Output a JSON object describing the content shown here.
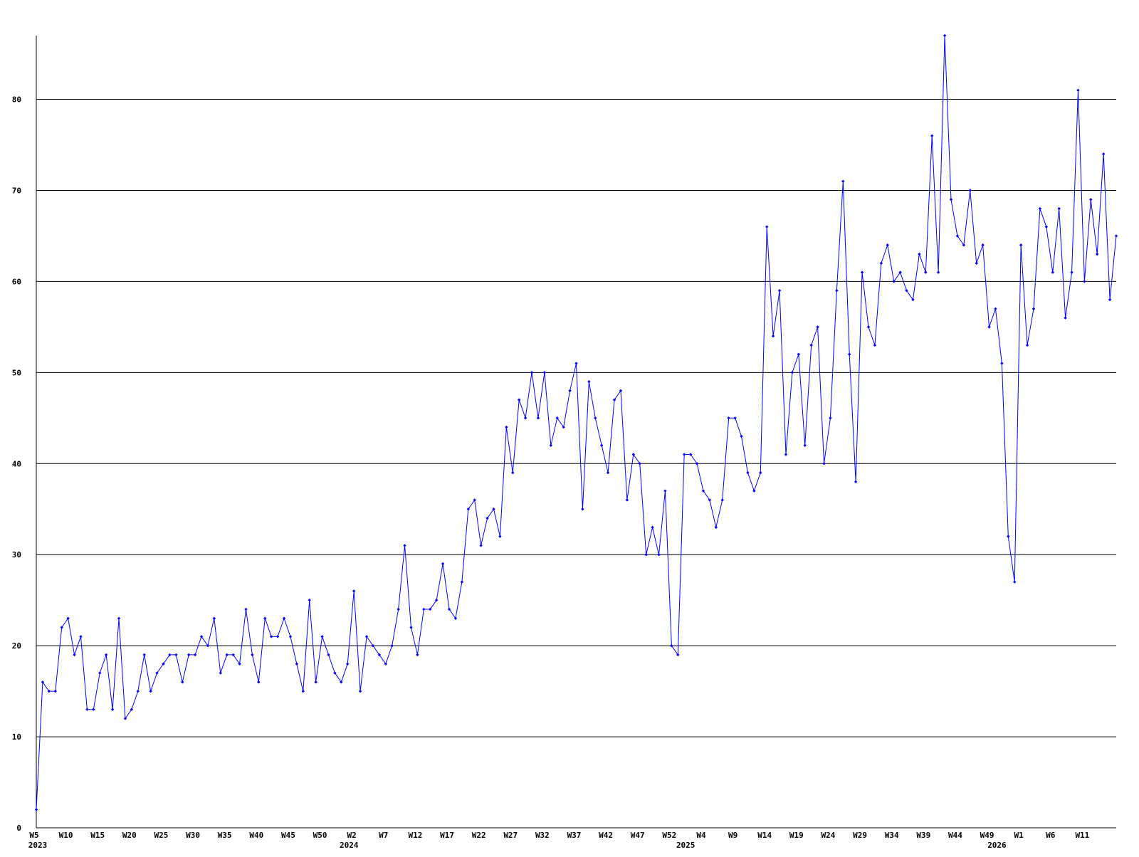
{
  "chart_data": {
    "type": "line",
    "categories": [
      "W5",
      null,
      null,
      null,
      null,
      "W10",
      null,
      null,
      null,
      null,
      "W15",
      null,
      null,
      null,
      null,
      "W20",
      null,
      null,
      null,
      null,
      "W25",
      null,
      null,
      null,
      null,
      "W30",
      null,
      null,
      null,
      null,
      "W35",
      null,
      null,
      null,
      null,
      "W40",
      null,
      null,
      null,
      null,
      "W45",
      null,
      null,
      null,
      null,
      "W50",
      null,
      null,
      null,
      null,
      "W2",
      null,
      null,
      null,
      null,
      "W7",
      null,
      null,
      null,
      null,
      "W12",
      null,
      null,
      null,
      null,
      "W17",
      null,
      null,
      null,
      null,
      "W22",
      null,
      null,
      null,
      null,
      "W27",
      null,
      null,
      null,
      null,
      "W32",
      null,
      null,
      null,
      null,
      "W37",
      null,
      null,
      null,
      null,
      "W42",
      null,
      null,
      null,
      null,
      "W47",
      null,
      null,
      null,
      null,
      "W52",
      null,
      null,
      null,
      null,
      "W4",
      null,
      null,
      null,
      null,
      "W9",
      null,
      null,
      null,
      null,
      "W14",
      null,
      null,
      null,
      null,
      "W19",
      null,
      null,
      null,
      null,
      "W24",
      null,
      null,
      null,
      null,
      "W29",
      null,
      null,
      null,
      null,
      "W34",
      null,
      null,
      null,
      null,
      "W39",
      null,
      null,
      null,
      null,
      "W44",
      null,
      null,
      null,
      null,
      "W49",
      null,
      null,
      null,
      null,
      "W1",
      null,
      null,
      null,
      null,
      "W6",
      null,
      null,
      null,
      null,
      "W11",
      null,
      null,
      null,
      null,
      null
    ],
    "category_years": [
      "2023",
      null,
      null,
      null,
      null,
      null,
      null,
      null,
      null,
      null,
      null,
      null,
      null,
      null,
      null,
      null,
      null,
      null,
      null,
      null,
      null,
      null,
      null,
      null,
      null,
      null,
      null,
      null,
      null,
      null,
      null,
      null,
      null,
      null,
      null,
      null,
      null,
      null,
      null,
      null,
      null,
      null,
      null,
      null,
      null,
      null,
      null,
      null,
      null,
      "2024",
      null,
      null,
      null,
      null,
      null,
      null,
      null,
      null,
      null,
      null,
      null,
      null,
      null,
      null,
      null,
      null,
      null,
      null,
      null,
      null,
      null,
      null,
      null,
      null,
      null,
      null,
      null,
      null,
      null,
      null,
      null,
      null,
      null,
      null,
      null,
      null,
      null,
      null,
      null,
      null,
      null,
      null,
      null,
      null,
      null,
      null,
      null,
      null,
      null,
      null,
      null,
      null,
      "2025",
      null,
      null,
      null,
      null,
      null,
      null,
      null,
      null,
      null,
      null,
      null,
      null,
      null,
      null,
      null,
      null,
      null,
      null,
      null,
      null,
      null,
      null,
      null,
      null,
      null,
      null,
      null,
      null,
      null,
      null,
      null,
      null,
      null,
      null,
      null,
      null,
      null,
      null,
      null,
      null,
      null,
      null,
      null,
      null,
      null,
      null,
      null,
      null,
      "2026",
      null,
      null,
      null,
      null,
      null,
      null,
      null,
      null,
      null,
      null,
      null,
      null,
      null,
      null,
      null
    ],
    "values": [
      2,
      16,
      15,
      15,
      22,
      23,
      19,
      21,
      13,
      13,
      17,
      19,
      13,
      23,
      12,
      13,
      15,
      19,
      15,
      17,
      18,
      19,
      19,
      16,
      19,
      19,
      21,
      20,
      23,
      17,
      19,
      19,
      18,
      24,
      19,
      16,
      23,
      21,
      21,
      23,
      21,
      18,
      15,
      25,
      16,
      21,
      19,
      17,
      16,
      18,
      26,
      15,
      21,
      20,
      19,
      18,
      20,
      24,
      31,
      22,
      19,
      24,
      24,
      25,
      29,
      24,
      23,
      27,
      35,
      36,
      31,
      34,
      35,
      32,
      44,
      39,
      47,
      45,
      50,
      45,
      50,
      42,
      45,
      44,
      48,
      51,
      35,
      49,
      45,
      42,
      39,
      47,
      48,
      36,
      41,
      40,
      30,
      33,
      30,
      37,
      20,
      19,
      41,
      41,
      40,
      37,
      36,
      33,
      36,
      45,
      45,
      43,
      39,
      37,
      39,
      66,
      54,
      59,
      41,
      50,
      52,
      42,
      53,
      55,
      40,
      45,
      59,
      71,
      52,
      38,
      61,
      55,
      53,
      62,
      64,
      60,
      61,
      59,
      58,
      63,
      61,
      76,
      61,
      87,
      69,
      65,
      64,
      70,
      62,
      64,
      55,
      57,
      51,
      32,
      27,
      64,
      53,
      57,
      68,
      66,
      61,
      68,
      56,
      61,
      81,
      60,
      69,
      63,
      74,
      58,
      65
    ],
    "color": "#0000ff",
    "ylim": [
      0,
      87
    ],
    "yticks": [
      0,
      10,
      20,
      30,
      40,
      50,
      60,
      70,
      80
    ],
    "grid": true
  }
}
